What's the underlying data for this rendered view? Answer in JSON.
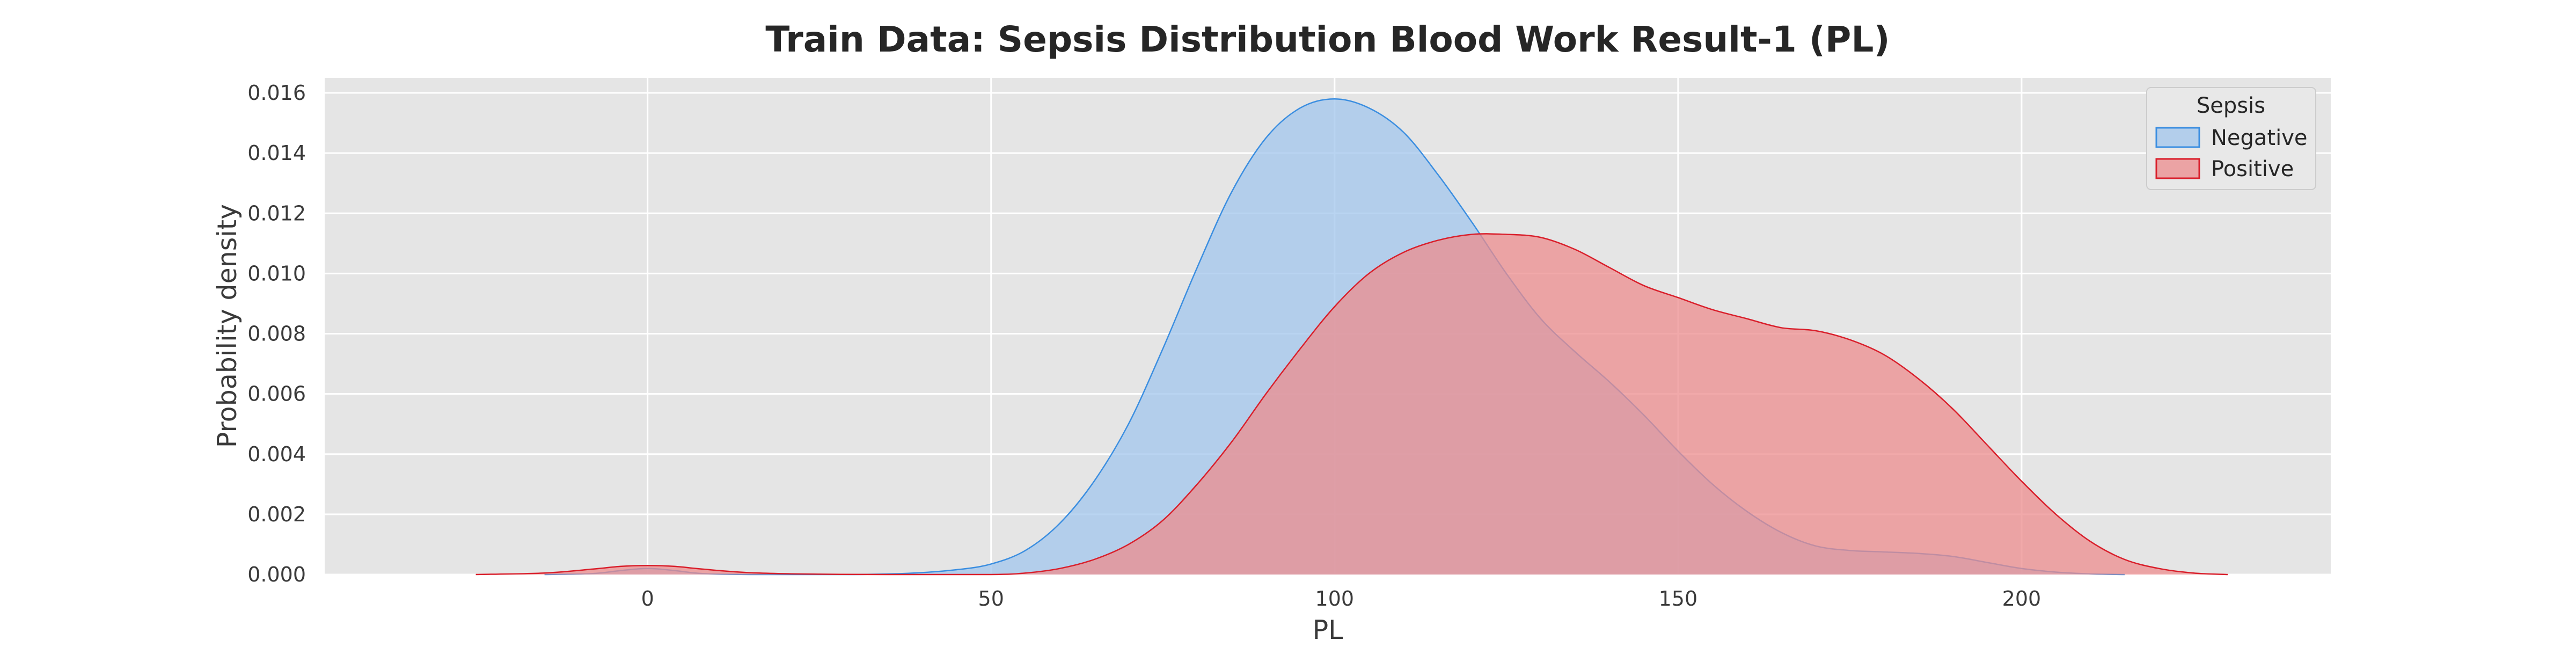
{
  "chart_data": {
    "type": "area",
    "title": "Train Data: Sepsis Distribution Blood Work Result-1 (PL)",
    "xlabel": "PL",
    "ylabel": "Probability density",
    "xlim": [
      -47,
      245
    ],
    "ylim": [
      0,
      0.0165
    ],
    "xticks": [
      0,
      50,
      100,
      150,
      200
    ],
    "yticks": [
      0.0,
      0.002,
      0.004,
      0.006,
      0.008,
      0.01,
      0.012,
      0.014,
      0.016
    ],
    "ytick_labels": [
      "0.000",
      "0.002",
      "0.004",
      "0.006",
      "0.008",
      "0.010",
      "0.012",
      "0.014",
      "0.016"
    ],
    "grid": true,
    "legend": {
      "title": "Sepsis",
      "position": "top-right"
    },
    "series": [
      {
        "name": "Negative",
        "color": "#3b8ee0",
        "fill": "#a1c6ec",
        "points": [
          [
            -15,
            0
          ],
          [
            -8,
            3e-05
          ],
          [
            -4,
            0.00013
          ],
          [
            0,
            0.0002
          ],
          [
            4,
            0.00013
          ],
          [
            8,
            3e-05
          ],
          [
            15,
            0
          ],
          [
            30,
            0
          ],
          [
            38,
            4e-05
          ],
          [
            45,
            0.00016
          ],
          [
            50,
            0.00035
          ],
          [
            55,
            0.0008
          ],
          [
            60,
            0.0017
          ],
          [
            65,
            0.0031
          ],
          [
            70,
            0.005
          ],
          [
            75,
            0.0075
          ],
          [
            80,
            0.0102
          ],
          [
            85,
            0.0127
          ],
          [
            90,
            0.0145
          ],
          [
            95,
            0.0155
          ],
          [
            100,
            0.0158
          ],
          [
            105,
            0.0155
          ],
          [
            110,
            0.0147
          ],
          [
            115,
            0.0133
          ],
          [
            120,
            0.0117
          ],
          [
            125,
            0.01
          ],
          [
            130,
            0.0085
          ],
          [
            135,
            0.0074
          ],
          [
            140,
            0.0064
          ],
          [
            145,
            0.0053
          ],
          [
            150,
            0.0041
          ],
          [
            155,
            0.003
          ],
          [
            160,
            0.0021
          ],
          [
            165,
            0.0014
          ],
          [
            170,
            0.00095
          ],
          [
            175,
            0.0008
          ],
          [
            180,
            0.00075
          ],
          [
            185,
            0.0007
          ],
          [
            190,
            0.0006
          ],
          [
            195,
            0.0004
          ],
          [
            200,
            0.0002
          ],
          [
            205,
            8e-05
          ],
          [
            210,
            2e-05
          ],
          [
            215,
            0
          ]
        ]
      },
      {
        "name": "Positive",
        "color": "#d91f2b",
        "fill": "#ec8c8e",
        "points": [
          [
            -25,
            0
          ],
          [
            -15,
            5e-05
          ],
          [
            -8,
            0.00018
          ],
          [
            -4,
            0.00027
          ],
          [
            0,
            0.0003
          ],
          [
            4,
            0.00027
          ],
          [
            8,
            0.00018
          ],
          [
            15,
            6e-05
          ],
          [
            25,
            1e-05
          ],
          [
            35,
            0
          ],
          [
            50,
            0
          ],
          [
            55,
            5e-05
          ],
          [
            60,
            0.0002
          ],
          [
            65,
            0.0005
          ],
          [
            70,
            0.001
          ],
          [
            75,
            0.0018
          ],
          [
            80,
            0.003
          ],
          [
            85,
            0.0044
          ],
          [
            90,
            0.006
          ],
          [
            95,
            0.0075
          ],
          [
            100,
            0.0089
          ],
          [
            105,
            0.01
          ],
          [
            110,
            0.0107
          ],
          [
            115,
            0.0111
          ],
          [
            120,
            0.0113
          ],
          [
            125,
            0.0113
          ],
          [
            130,
            0.0112
          ],
          [
            135,
            0.0108
          ],
          [
            140,
            0.0102
          ],
          [
            145,
            0.0096
          ],
          [
            150,
            0.0092
          ],
          [
            155,
            0.0088
          ],
          [
            160,
            0.0085
          ],
          [
            165,
            0.0082
          ],
          [
            170,
            0.0081
          ],
          [
            175,
            0.0078
          ],
          [
            180,
            0.0073
          ],
          [
            185,
            0.0065
          ],
          [
            190,
            0.0055
          ],
          [
            195,
            0.0043
          ],
          [
            200,
            0.0031
          ],
          [
            205,
            0.002
          ],
          [
            210,
            0.0011
          ],
          [
            215,
            0.0005
          ],
          [
            220,
            0.0002
          ],
          [
            225,
            5e-05
          ],
          [
            230,
            0
          ]
        ]
      }
    ]
  }
}
